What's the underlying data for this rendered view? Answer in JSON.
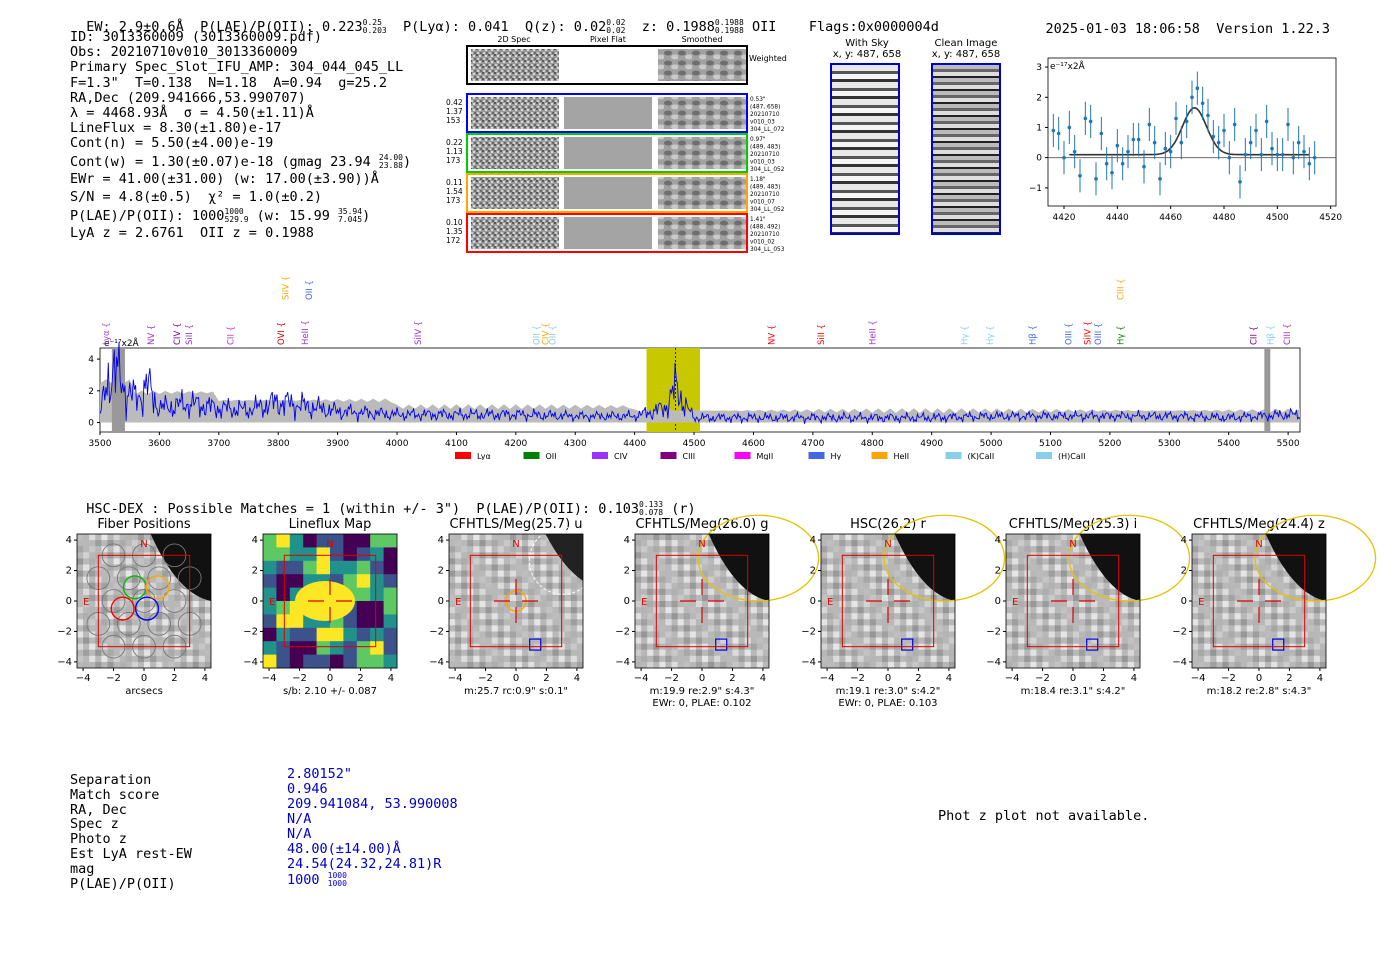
{
  "header": {
    "ew": "EW: 2.9±0.6Å",
    "plae_label": "P(LAE)/P(OII): 0.223",
    "plae_hi": "0.25",
    "plae_lo": "0.203",
    "plya": "P(Lyα): 0.041",
    "qz_label": "Q(z): 0.02",
    "qz_hi": "0.02",
    "qz_lo": "0.02",
    "z_label": "z: 0.1988",
    "z_hi": "0.1988",
    "z_lo": "0.1988",
    "z_line": "OII",
    "flags": "Flags:0x0000004d",
    "timestamp": "2025-01-03 18:06:58",
    "version": "Version 1.22.3"
  },
  "info": {
    "lines": [
      "ID: 3013360009 (3013360009.pdf)",
      "Obs: 20210710v010_3013360009",
      "Primary Spec_Slot_IFU_AMP: 304_044_045_LL",
      "F=1.3\"  T=0.138  N=1.18  A=0.94  g=25.2",
      "RA,Dec (209.941666,53.990707)",
      "λ = 4468.93Å  σ = 4.50(±1.11)Å",
      "LineFlux = 8.30(±1.80)e-17",
      "Cont(n) = 5.50(±4.00)e-19"
    ],
    "contw": "Cont(w) = 1.30(±0.07)e-18 (gmag 23.94",
    "contw_hi": "24.00",
    "contw_lo": "23.88",
    "ewr": "EWr = 41.00(±31.00) (w: 17.00(±3.90))Å",
    "sn": "S/N = 4.8(±0.5)  χ² = 1.0(±0.2)",
    "plae2": "P(LAE)/P(OII): 1000",
    "plae2_hi": "1000",
    "plae2_lo": "529.9",
    "plae2_w": "(w: 15.99",
    "plae2_w_hi": "35.94",
    "plae2_w_lo": "7.045",
    "lyaz": "LyA z = 2.6761  OII z = 0.1988"
  },
  "cutouts": {
    "col_2d": "2D Spec",
    "col_flat": "Pixel Flat",
    "col_smooth": "Smoothed",
    "weighted": "Weighted Sum",
    "rows": [
      {
        "left": [
          "0.42",
          "1.37",
          "153"
        ],
        "right": [
          "0.53\"",
          "(487, 658)",
          "20210710",
          "v010_03",
          "304_LL_072"
        ],
        "color": "#0000ff"
      },
      {
        "left": [
          "0.22",
          "1.13",
          "173"
        ],
        "right": [
          "0.97\"",
          "(489, 483)",
          "20210710",
          "v010_03",
          "304_LL_052"
        ],
        "color": "#00cc00"
      },
      {
        "left": [
          "0.11",
          "1.54",
          "173"
        ],
        "right": [
          "1.18\"",
          "(489, 483)",
          "20210710",
          "v010_07",
          "304_LL_052"
        ],
        "color": "#ffa500"
      },
      {
        "left": [
          "0.10",
          "1.35",
          "172"
        ],
        "right": [
          "1.41\"",
          "(488, 492)",
          "20210710",
          "v010_02",
          "304_LL_053"
        ],
        "color": "#ff0000"
      }
    ],
    "with_sky": "With Sky",
    "with_sky_xy": "x, y: 487, 658",
    "clean": "Clean Image",
    "clean_xy": "x, y: 487, 658"
  },
  "zoom_plot": {
    "unit": "e⁻¹⁷x2Å",
    "xticks": [
      "4420",
      "4440",
      "4460",
      "4480",
      "4500",
      "4520"
    ],
    "yticks": [
      "3",
      "2",
      "1",
      "0",
      "−1"
    ]
  },
  "spectrum": {
    "unit": "e⁻¹⁷x2Å",
    "xticks": [
      "3500",
      "3600",
      "3700",
      "3800",
      "3900",
      "4000",
      "4100",
      "4200",
      "4300",
      "4400",
      "4500",
      "4600",
      "4700",
      "4800",
      "4900",
      "5000",
      "5100",
      "5200",
      "5300",
      "5400",
      "5500"
    ],
    "yticks": [
      "4",
      "2",
      "0"
    ],
    "lines": [
      {
        "label": "Lyα",
        "x": 3510,
        "color": "#b044cc",
        "tier": 0
      },
      {
        "label": "NV",
        "x": 3586,
        "color": "#9933cc",
        "tier": 0
      },
      {
        "label": "CIV",
        "x": 3630,
        "color": "#800080",
        "tier": 0
      },
      {
        "label": "SiII",
        "x": 3650,
        "color": "#9933cc",
        "tier": 0
      },
      {
        "label": "CII",
        "x": 3720,
        "color": "#cc33cc",
        "tier": 0
      },
      {
        "label": "OVI",
        "x": 3805,
        "color": "#cc0000",
        "tier": 0
      },
      {
        "label": "HeII",
        "x": 3845,
        "color": "#9933cc",
        "tier": 0
      },
      {
        "label": "SiIV",
        "x": 4035,
        "color": "#9933cc",
        "tier": 0
      },
      {
        "label": "OII",
        "x": 4235,
        "color": "#87ceeb",
        "tier": 0
      },
      {
        "label": "CIV",
        "x": 4250,
        "color": "#ffa500",
        "tier": 0
      },
      {
        "label": "OII",
        "x": 4262,
        "color": "#87ceeb",
        "tier": 0
      },
      {
        "label": "NV",
        "x": 4630,
        "color": "#ff0000",
        "tier": 0
      },
      {
        "label": "SiII",
        "x": 4714,
        "color": "#ff0000",
        "tier": 0
      },
      {
        "label": "HeII",
        "x": 4800,
        "color": "#9933cc",
        "tier": 0
      },
      {
        "label": "Hγ",
        "x": 4955,
        "color": "#87ceeb",
        "tier": 0
      },
      {
        "label": "Hγ",
        "x": 4998,
        "color": "#87ceeb",
        "tier": 0
      },
      {
        "label": "Hβ",
        "x": 5070,
        "color": "#4169e1",
        "tier": 0
      },
      {
        "label": "OIII",
        "x": 5130,
        "color": "#4169e1",
        "tier": 0
      },
      {
        "label": "SiIV",
        "x": 5162,
        "color": "#ff0000",
        "tier": 0
      },
      {
        "label": "OIII",
        "x": 5180,
        "color": "#4169e1",
        "tier": 0
      },
      {
        "label": "Hγ",
        "x": 5218,
        "color": "#008000",
        "tier": 0
      },
      {
        "label": "CII",
        "x": 5442,
        "color": "#800080",
        "tier": 0
      },
      {
        "label": "Hβ",
        "x": 5470,
        "color": "#87ceeb",
        "tier": 0
      },
      {
        "label": "CIII",
        "x": 5498,
        "color": "#9933cc",
        "tier": 0
      },
      {
        "label": "SiIV",
        "x": 3812,
        "color": "#ffa500",
        "tier": 1
      },
      {
        "label": "OII",
        "x": 3852,
        "color": "#4169e1",
        "tier": 1
      },
      {
        "label": "CIII",
        "x": 5218,
        "color": "#ffa500",
        "tier": 1
      }
    ],
    "legend": [
      {
        "label": "Lyα",
        "color": "#ff0000"
      },
      {
        "label": "OII",
        "color": "#008000"
      },
      {
        "label": "CIV",
        "color": "#9933ff"
      },
      {
        "label": "CIII",
        "color": "#800080"
      },
      {
        "label": "MgII",
        "color": "#ff00ff"
      },
      {
        "label": "Hγ",
        "color": "#4169e1"
      },
      {
        "label": "HeII",
        "color": "#ffa500"
      },
      {
        "label": "(K)CaII",
        "color": "#87ceeb"
      },
      {
        "label": "(H)CaII",
        "color": "#87ceeb"
      }
    ]
  },
  "hsc": {
    "header": "HSC-DEX : Possible Matches = 1 (within +/- 3\")  P(LAE)/P(OII): 0.103",
    "hi": "0.133",
    "lo": "0.078",
    "band": "(r)"
  },
  "panels": [
    {
      "title": "Fiber Positions",
      "xlabel": "arcsecs",
      "sub": ""
    },
    {
      "title": "Lineflux Map",
      "xlabel": "s/b: 2.10 +/- 0.087",
      "sub": ""
    },
    {
      "title": "CFHTLS/Meg(25.7) u",
      "xlabel": "m:25.7 rc:0.9\"  s:0.1\"",
      "sub": ""
    },
    {
      "title": "CFHTLS/Meg(26.0) g",
      "xlabel": "m:19.9  re:2.9\"  s:4.3\"",
      "sub": "EWr: 0, PLAE: 0.102"
    },
    {
      "title": "HSC(26.2) r",
      "xlabel": "m:19.1  re:3.0\"  s:4.2\"",
      "sub": "EWr: 0, PLAE: 0.103"
    },
    {
      "title": "CFHTLS/Meg(25.3) i",
      "xlabel": "m:18.4  re:3.1\"  s:4.2\"",
      "sub": ""
    },
    {
      "title": "CFHTLS/Meg(24.4) z",
      "xlabel": "m:18.2  re:2.8\"  s:4.3\"",
      "sub": ""
    }
  ],
  "panel_ticks": {
    "ticks": [
      "−4",
      "−2",
      "0",
      "2",
      "4"
    ],
    "n": "N",
    "e": "E"
  },
  "match": {
    "labels": [
      "Separation",
      "Match score",
      "RA, Dec",
      "Spec z",
      "Photo z",
      "Est LyA rest-EW",
      "mag",
      "P(LAE)/P(OII)"
    ],
    "values": [
      "2.80152\"",
      "0.946",
      "209.941084, 53.990008",
      "N/A",
      "N/A",
      "48.00(±14.00)Å",
      "24.54(24.32,24.81)R",
      "1000"
    ],
    "plae_hi": "1000",
    "plae_lo": "1000"
  },
  "photz": "Phot z plot not available.",
  "chart_data": [
    {
      "type": "line",
      "title": "",
      "xlabel": "",
      "ylabel": "e⁻¹⁷x2Å",
      "xlim": [
        3500,
        5520
      ],
      "ylim": [
        -0.6,
        4.7
      ],
      "highlight_band": [
        4420,
        4510
      ],
      "line_center": 4468.93,
      "series": [
        {
          "x": [
            3500,
            3520,
            3540,
            3560,
            3580,
            3600,
            3650,
            3700,
            3750,
            3800,
            3850,
            3900,
            3950,
            4000,
            4100,
            4200,
            4300,
            4400,
            4450,
            4470,
            4490,
            4500,
            4600,
            4700,
            4800,
            4900,
            5000,
            5100,
            5200,
            5300,
            5400,
            5500
          ],
          "values": [
            0.5,
            3.6,
            2.2,
            1.5,
            2.3,
            0.9,
            1.2,
            0.9,
            0.8,
            1.3,
            1.0,
            0.7,
            0.6,
            0.5,
            0.5,
            0.5,
            0.4,
            0.4,
            0.9,
            2.2,
            0.8,
            0.3,
            0.3,
            0.3,
            0.3,
            0.3,
            0.4,
            0.4,
            0.4,
            0.4,
            0.3,
            0.5
          ]
        }
      ]
    },
    {
      "type": "scatter",
      "title": "",
      "ylabel": "e⁻¹⁷x2Å",
      "xlim": [
        4414,
        4522
      ],
      "ylim": [
        -1.6,
        3.3
      ],
      "gauss_fit": {
        "center": 4468.93,
        "sigma": 4.5,
        "amp": 1.55,
        "base": 0.1
      },
      "x": [
        4416,
        4418,
        4420,
        4422,
        4424,
        4426,
        4428,
        4430,
        4432,
        4434,
        4436,
        4438,
        4440,
        4442,
        4444,
        4446,
        4448,
        4450,
        4452,
        4454,
        4456,
        4458,
        4460,
        4462,
        4464,
        4466,
        4468,
        4470,
        4472,
        4474,
        4476,
        4478,
        4480,
        4482,
        4484,
        4486,
        4488,
        4490,
        4492,
        4494,
        4496,
        4498,
        4500,
        4502,
        4504,
        4506,
        4508,
        4510,
        4512,
        4514
      ],
      "values": [
        0.9,
        0.8,
        0.0,
        1.0,
        0.2,
        -0.6,
        1.3,
        1.2,
        -0.7,
        0.8,
        -0.2,
        -0.5,
        0.4,
        -0.2,
        0.2,
        0.6,
        0.6,
        -0.3,
        1.1,
        0.5,
        -0.7,
        0.3,
        0.2,
        1.3,
        0.5,
        1.2,
        2.0,
        2.3,
        1.8,
        1.4,
        0.7,
        0.5,
        0.9,
        0.0,
        1.1,
        -0.8,
        0.1,
        0.5,
        0.9,
        0.1,
        1.2,
        0.3,
        0.1,
        0.1,
        1.1,
        0.0,
        0.5,
        0.2,
        -0.2,
        0.0
      ]
    }
  ]
}
